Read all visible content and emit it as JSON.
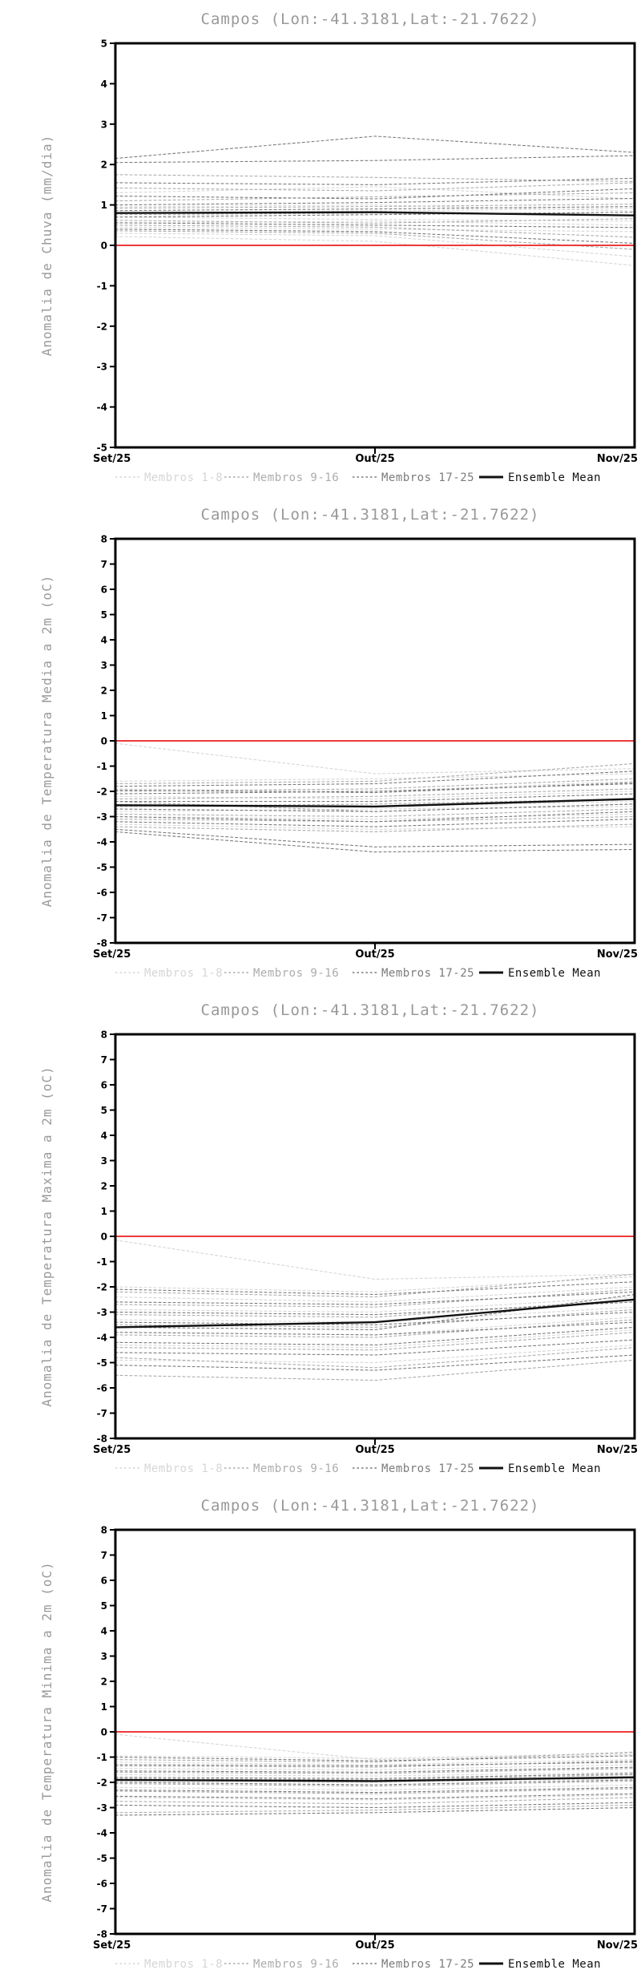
{
  "legend": [
    {
      "label": "Membros 1-8",
      "color": "#d6d6d6",
      "style": "dashed"
    },
    {
      "label": "Membros 9-16",
      "color": "#acacac",
      "style": "dashed"
    },
    {
      "label": "Membros 17-25",
      "color": "#7b7b7b",
      "style": "dashed"
    },
    {
      "label": "Ensemble Mean",
      "color": "#111111",
      "style": "solid"
    }
  ],
  "chart_data": [
    {
      "type": "line",
      "title": "Campos (Lon:-41.3181,Lat:-21.7622)",
      "ylabel": "Anomalia de Chuva (mm/dia)",
      "x_categories": [
        "Set/25",
        "Out/25",
        "Nov/25"
      ],
      "ylim": [
        -5,
        5
      ],
      "yticks": [
        "5",
        "4",
        "3",
        "2",
        "1",
        "0",
        "-1",
        "-2",
        "-3",
        "-4",
        "-5"
      ],
      "grid": false,
      "legend_position": "bottom",
      "series": {
        "membros_1_8": {
          "color": "#d6d6d6",
          "dash": true,
          "values": [
            [
              1.3,
              1.45,
              1.15
            ],
            [
              0.95,
              1.0,
              0.85
            ],
            [
              0.8,
              0.85,
              0.92
            ],
            [
              0.7,
              0.64,
              0.6
            ],
            [
              0.55,
              0.6,
              0.5
            ],
            [
              0.45,
              0.4,
              0.34
            ],
            [
              0.3,
              0.24,
              -0.28
            ],
            [
              0.22,
              0.1,
              -0.5
            ]
          ]
        },
        "membros_9_16": {
          "color": "#acacac",
          "dash": true,
          "values": [
            [
              1.75,
              1.68,
              1.58
            ],
            [
              1.42,
              1.35,
              1.55
            ],
            [
              1.1,
              1.2,
              1.3
            ],
            [
              0.92,
              0.96,
              1.02
            ],
            [
              0.76,
              0.8,
              0.74
            ],
            [
              0.62,
              0.55,
              0.66
            ],
            [
              0.5,
              0.45,
              0.2
            ],
            [
              0.36,
              0.3,
              -0.1
            ]
          ]
        },
        "membros_17_25": {
          "color": "#7b7b7b",
          "dash": true,
          "values": [
            [
              2.15,
              2.7,
              2.3
            ],
            [
              2.05,
              2.1,
              2.22
            ],
            [
              1.55,
              1.5,
              1.66
            ],
            [
              1.22,
              1.15,
              1.4
            ],
            [
              1.0,
              1.06,
              1.16
            ],
            [
              0.86,
              0.9,
              0.96
            ],
            [
              0.7,
              0.76,
              0.82
            ],
            [
              0.56,
              0.5,
              0.44
            ],
            [
              0.4,
              0.34,
              0.05
            ]
          ]
        },
        "ensemble_mean": {
          "color": "#111111",
          "dash": false,
          "values": [
            0.8,
            0.82,
            0.74
          ]
        },
        "zero_line": {
          "color": "#ee3a3a",
          "dash": false,
          "values": [
            0,
            0,
            0
          ]
        }
      }
    },
    {
      "type": "line",
      "title": "Campos (Lon:-41.3181,Lat:-21.7622)",
      "ylabel": "Anomalia de Temperatura Media a 2m (oC)",
      "x_categories": [
        "Set/25",
        "Out/25",
        "Nov/25"
      ],
      "ylim": [
        -8,
        8
      ],
      "yticks": [
        "8",
        "7",
        "6",
        "5",
        "4",
        "3",
        "2",
        "1",
        "0",
        "-1",
        "-2",
        "-3",
        "-4",
        "-5",
        "-6",
        "-7",
        "-8"
      ],
      "grid": false,
      "legend_position": "bottom",
      "series": {
        "membros_1_8": {
          "color": "#d6d6d6",
          "dash": true,
          "values": [
            [
              -0.1,
              -1.3,
              -1.1
            ],
            [
              -1.6,
              -1.5,
              -1.3
            ],
            [
              -1.9,
              -2.0,
              -1.6
            ],
            [
              -2.2,
              -2.3,
              -2.0
            ],
            [
              -2.5,
              -2.6,
              -2.4
            ],
            [
              -2.8,
              -2.7,
              -2.6
            ],
            [
              -3.0,
              -3.1,
              -2.9
            ],
            [
              -3.3,
              -3.5,
              -3.4
            ]
          ]
        },
        "membros_9_16": {
          "color": "#acacac",
          "dash": true,
          "values": [
            [
              -1.7,
              -1.6,
              -0.9
            ],
            [
              -2.0,
              -1.9,
              -1.5
            ],
            [
              -2.3,
              -2.2,
              -1.9
            ],
            [
              -2.6,
              -2.5,
              -2.3
            ],
            [
              -2.9,
              -3.0,
              -2.7
            ],
            [
              -3.1,
              -3.2,
              -3.0
            ],
            [
              -3.4,
              -3.6,
              -3.3
            ],
            [
              -2.4,
              -2.8,
              -2.5
            ]
          ]
        },
        "membros_17_25": {
          "color": "#7b7b7b",
          "dash": true,
          "values": [
            [
              -1.8,
              -1.7,
              -1.2
            ],
            [
              -2.1,
              -2.0,
              -1.7
            ],
            [
              -2.4,
              -2.4,
              -2.1
            ],
            [
              -2.7,
              -2.8,
              -2.5
            ],
            [
              -3.0,
              -3.2,
              -2.8
            ],
            [
              -3.2,
              -3.4,
              -3.1
            ],
            [
              -3.5,
              -4.2,
              -4.1
            ],
            [
              -3.6,
              -4.4,
              -4.3
            ],
            [
              -1.95,
              -2.05,
              -1.65
            ]
          ]
        },
        "ensemble_mean": {
          "color": "#111111",
          "dash": false,
          "values": [
            -2.55,
            -2.6,
            -2.3
          ]
        },
        "zero_line": {
          "color": "#ee3a3a",
          "dash": false,
          "values": [
            0,
            0,
            0
          ]
        }
      }
    },
    {
      "type": "line",
      "title": "Campos (Lon:-41.3181,Lat:-21.7622)",
      "ylabel": "Anomalia de Temperatura Maxima a 2m (oC)",
      "x_categories": [
        "Set/25",
        "Out/25",
        "Nov/25"
      ],
      "ylim": [
        -8,
        8
      ],
      "yticks": [
        "8",
        "7",
        "6",
        "5",
        "4",
        "3",
        "2",
        "1",
        "0",
        "-1",
        "-2",
        "-3",
        "-4",
        "-5",
        "-6",
        "-7",
        "-8"
      ],
      "grid": false,
      "legend_position": "bottom",
      "series": {
        "membros_1_8": {
          "color": "#d6d6d6",
          "dash": true,
          "values": [
            [
              -0.15,
              -1.7,
              -1.5
            ],
            [
              -2.0,
              -2.2,
              -1.6
            ],
            [
              -2.4,
              -2.6,
              -2.0
            ],
            [
              -2.9,
              -3.0,
              -2.4
            ],
            [
              -3.3,
              -3.4,
              -2.8
            ],
            [
              -3.8,
              -3.9,
              -3.2
            ],
            [
              -4.3,
              -4.4,
              -3.7
            ],
            [
              -4.9,
              -5.0,
              -4.3
            ]
          ]
        },
        "membros_9_16": {
          "color": "#acacac",
          "dash": true,
          "values": [
            [
              -2.2,
              -2.4,
              -1.5
            ],
            [
              -2.7,
              -2.8,
              -2.1
            ],
            [
              -3.1,
              -3.2,
              -2.5
            ],
            [
              -3.5,
              -3.6,
              -2.9
            ],
            [
              -3.9,
              -4.0,
              -3.3
            ],
            [
              -4.4,
              -4.5,
              -3.8
            ],
            [
              -4.8,
              -5.2,
              -4.4
            ],
            [
              -5.5,
              -5.7,
              -4.9
            ]
          ]
        },
        "membros_17_25": {
          "color": "#7b7b7b",
          "dash": true,
          "values": [
            [
              -2.1,
              -2.3,
              -1.8
            ],
            [
              -2.6,
              -2.7,
              -2.2
            ],
            [
              -3.0,
              -3.1,
              -2.6
            ],
            [
              -3.4,
              -3.5,
              -3.0
            ],
            [
              -3.8,
              -3.9,
              -3.4
            ],
            [
              -4.2,
              -4.3,
              -3.6
            ],
            [
              -4.6,
              -4.7,
              -4.1
            ],
            [
              -5.1,
              -5.3,
              -4.7
            ],
            [
              -3.6,
              -3.7,
              -2.3
            ]
          ]
        },
        "ensemble_mean": {
          "color": "#111111",
          "dash": false,
          "values": [
            -3.6,
            -3.4,
            -2.5
          ]
        },
        "zero_line": {
          "color": "#ee3a3a",
          "dash": false,
          "values": [
            0,
            0,
            0
          ]
        }
      }
    },
    {
      "type": "line",
      "title": "Campos (Lon:-41.3181,Lat:-21.7622)",
      "ylabel": "Anomalia de Temperatura Minima a 2m (oC)",
      "x_categories": [
        "Set/25",
        "Out/25",
        "Nov/25"
      ],
      "ylim": [
        -8,
        8
      ],
      "yticks": [
        "8",
        "7",
        "6",
        "5",
        "4",
        "3",
        "2",
        "1",
        "0",
        "-1",
        "-2",
        "-3",
        "-4",
        "-5",
        "-6",
        "-7",
        "-8"
      ],
      "grid": false,
      "legend_position": "bottom",
      "series": {
        "membros_1_8": {
          "color": "#d6d6d6",
          "dash": true,
          "values": [
            [
              -0.1,
              -1.1,
              -0.9
            ],
            [
              -0.95,
              -1.05,
              -0.85
            ],
            [
              -1.2,
              -1.3,
              -1.1
            ],
            [
              -1.45,
              -1.5,
              -1.3
            ],
            [
              -1.7,
              -1.75,
              -1.6
            ],
            [
              -1.95,
              -2.0,
              -1.85
            ],
            [
              -2.2,
              -2.3,
              -2.1
            ],
            [
              -2.6,
              -2.7,
              -2.5
            ]
          ]
        },
        "membros_9_16": {
          "color": "#acacac",
          "dash": true,
          "values": [
            [
              -1.1,
              -1.2,
              -0.8
            ],
            [
              -1.35,
              -1.4,
              -1.15
            ],
            [
              -1.6,
              -1.65,
              -1.45
            ],
            [
              -1.85,
              -1.9,
              -1.7
            ],
            [
              -2.05,
              -2.15,
              -1.95
            ],
            [
              -2.35,
              -2.45,
              -2.25
            ],
            [
              -2.75,
              -2.85,
              -2.6
            ],
            [
              -3.2,
              -3.1,
              -2.9
            ]
          ]
        },
        "membros_17_25": {
          "color": "#7b7b7b",
          "dash": true,
          "values": [
            [
              -1.0,
              -1.15,
              -0.95
            ],
            [
              -1.3,
              -1.35,
              -1.2
            ],
            [
              -1.55,
              -1.6,
              -1.4
            ],
            [
              -1.8,
              -1.85,
              -1.65
            ],
            [
              -2.0,
              -2.1,
              -1.9
            ],
            [
              -2.3,
              -2.4,
              -2.2
            ],
            [
              -2.55,
              -2.65,
              -2.45
            ],
            [
              -2.9,
              -3.0,
              -2.8
            ],
            [
              -3.3,
              -3.2,
              -3.0
            ]
          ]
        },
        "ensemble_mean": {
          "color": "#111111",
          "dash": false,
          "values": [
            -1.9,
            -1.95,
            -1.8
          ]
        },
        "zero_line": {
          "color": "#ee3a3a",
          "dash": false,
          "values": [
            0,
            0,
            0
          ]
        }
      }
    }
  ]
}
